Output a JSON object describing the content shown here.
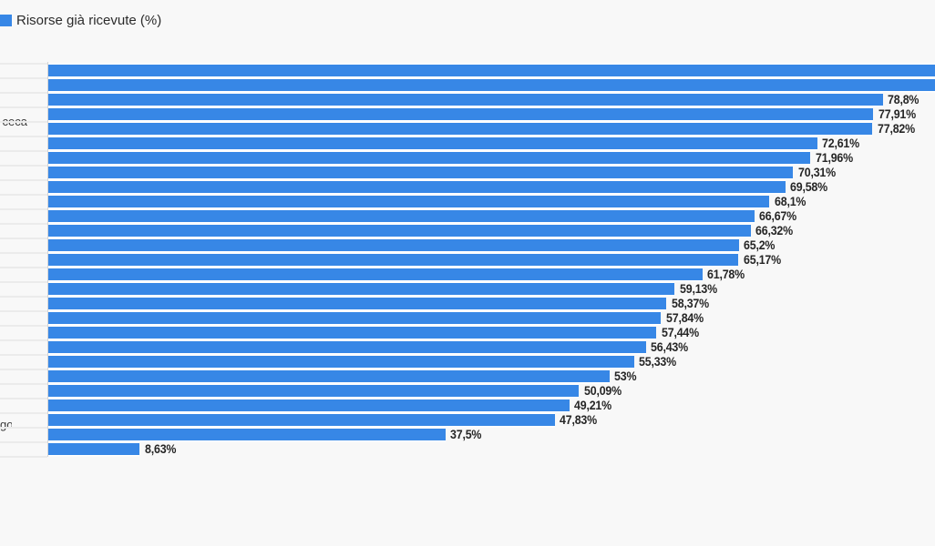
{
  "legend": {
    "series_label": "Risorse già ricevute (%)"
  },
  "colors": {
    "bar": "#3787e6",
    "background": "#f8f8f8",
    "axis_line": "#d5d5d5",
    "grid_line": "#ebebeb",
    "value_label": "#262626"
  },
  "chart_data": {
    "type": "bar",
    "orientation": "horizontal",
    "series_name": "Risorse già ricevute (%)",
    "value_suffix": "%",
    "decimal_separator": ",",
    "xlim_visible": [
      0,
      83.8
    ],
    "grid": "category separators in left margin only",
    "legend_position": "top-left",
    "categories_visible_fragments": [
      {
        "row_index": 3,
        "text": "ceca"
      },
      {
        "row_index": 24,
        "text": "go"
      }
    ],
    "bars": [
      {
        "value": null,
        "value_label": "",
        "clipped_at_right_edge": true
      },
      {
        "value": null,
        "value_label": "",
        "clipped_at_right_edge": true
      },
      {
        "value": 78.8,
        "value_label": "78,8%"
      },
      {
        "value": 77.91,
        "value_label": "77,91%"
      },
      {
        "value": 77.82,
        "value_label": "77,82%"
      },
      {
        "value": 72.61,
        "value_label": "72,61%"
      },
      {
        "value": 71.96,
        "value_label": "71,96%"
      },
      {
        "value": 70.31,
        "value_label": "70,31%"
      },
      {
        "value": 69.58,
        "value_label": "69,58%"
      },
      {
        "value": 68.1,
        "value_label": "68,1%"
      },
      {
        "value": 66.67,
        "value_label": "66,67%"
      },
      {
        "value": 66.32,
        "value_label": "66,32%"
      },
      {
        "value": 65.2,
        "value_label": "65,2%"
      },
      {
        "value": 65.17,
        "value_label": "65,17%"
      },
      {
        "value": 61.78,
        "value_label": "61,78%"
      },
      {
        "value": 59.13,
        "value_label": "59,13%"
      },
      {
        "value": 58.37,
        "value_label": "58,37%"
      },
      {
        "value": 57.84,
        "value_label": "57,84%"
      },
      {
        "value": 57.44,
        "value_label": "57,44%"
      },
      {
        "value": 56.43,
        "value_label": "56,43%"
      },
      {
        "value": 55.33,
        "value_label": "55,33%"
      },
      {
        "value": 53,
        "value_label": "53%"
      },
      {
        "value": 50.09,
        "value_label": "50,09%"
      },
      {
        "value": 49.21,
        "value_label": "49,21%"
      },
      {
        "value": 47.83,
        "value_label": "47,83%"
      },
      {
        "value": 37.5,
        "value_label": "37,5%"
      },
      {
        "value": 8.63,
        "value_label": "8,63%"
      }
    ]
  }
}
